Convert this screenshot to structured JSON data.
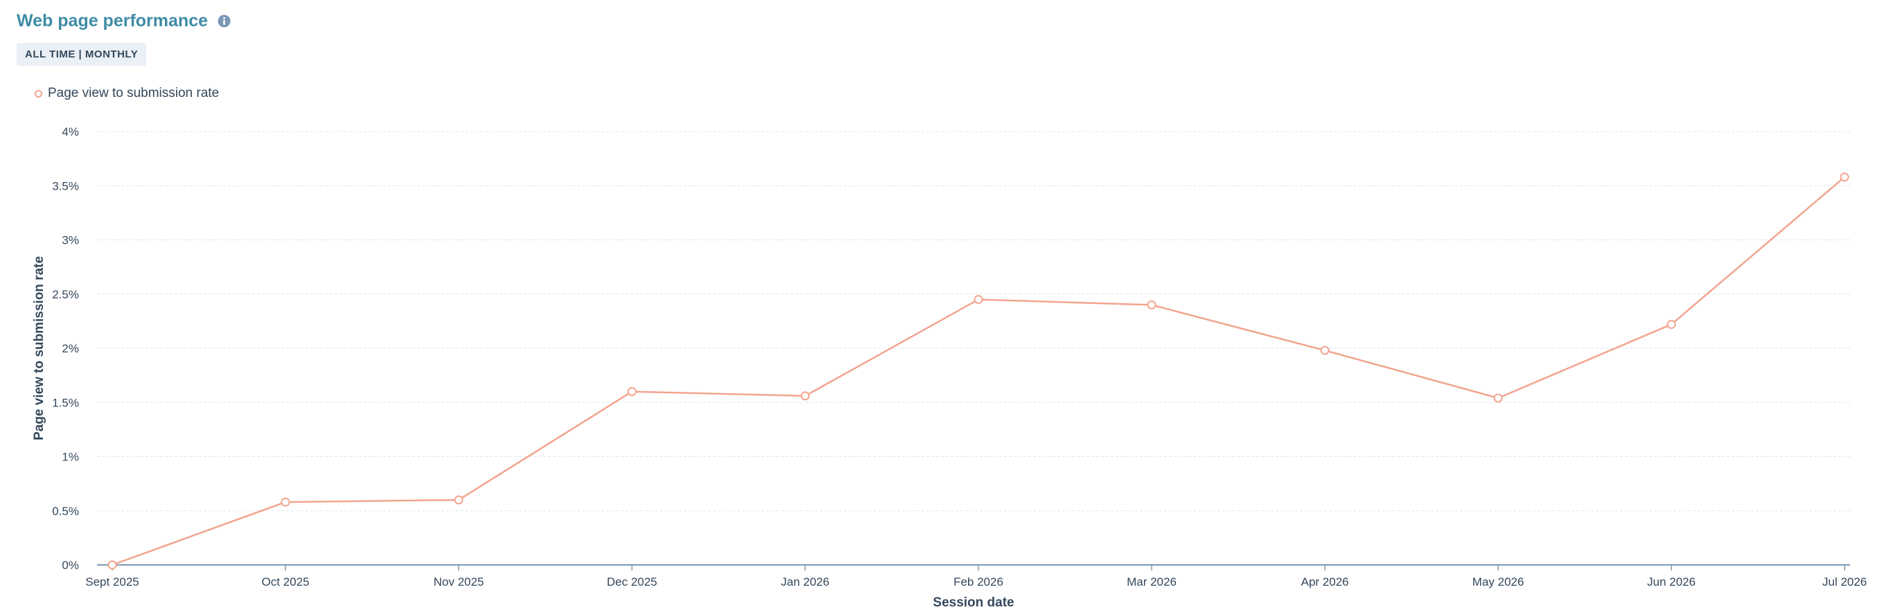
{
  "header": {
    "title": "Web page performance",
    "info_icon": "info-icon"
  },
  "filter_tag": "ALL TIME | MONTHLY",
  "colors": {
    "title": "#3f8ba5",
    "series": "#f2a48e",
    "text": "#33475b",
    "grid": "#dfe3eb"
  },
  "chart_data": {
    "type": "line",
    "title": "",
    "xlabel": "Session date",
    "ylabel": "Page view to submission rate",
    "ylim": [
      0,
      4
    ],
    "y_ticks": [
      "0%",
      "0.5%",
      "1%",
      "1.5%",
      "2%",
      "2.5%",
      "3%",
      "3.5%",
      "4%"
    ],
    "y_tick_values": [
      0,
      0.5,
      1,
      1.5,
      2,
      2.5,
      3,
      3.5,
      4
    ],
    "categories": [
      "Sept 2025",
      "Oct 2025",
      "Nov 2025",
      "Dec 2025",
      "Jan 2026",
      "Feb 2026",
      "Mar 2026",
      "Apr 2026",
      "May 2026",
      "Jun 2026",
      "Jul 2026"
    ],
    "legend_position": "top-left",
    "grid": true,
    "series": [
      {
        "name": "Page view to submission rate",
        "values": [
          0,
          0.58,
          0.6,
          1.6,
          1.56,
          2.45,
          2.4,
          1.98,
          1.54,
          2.22,
          3.58
        ]
      }
    ]
  }
}
